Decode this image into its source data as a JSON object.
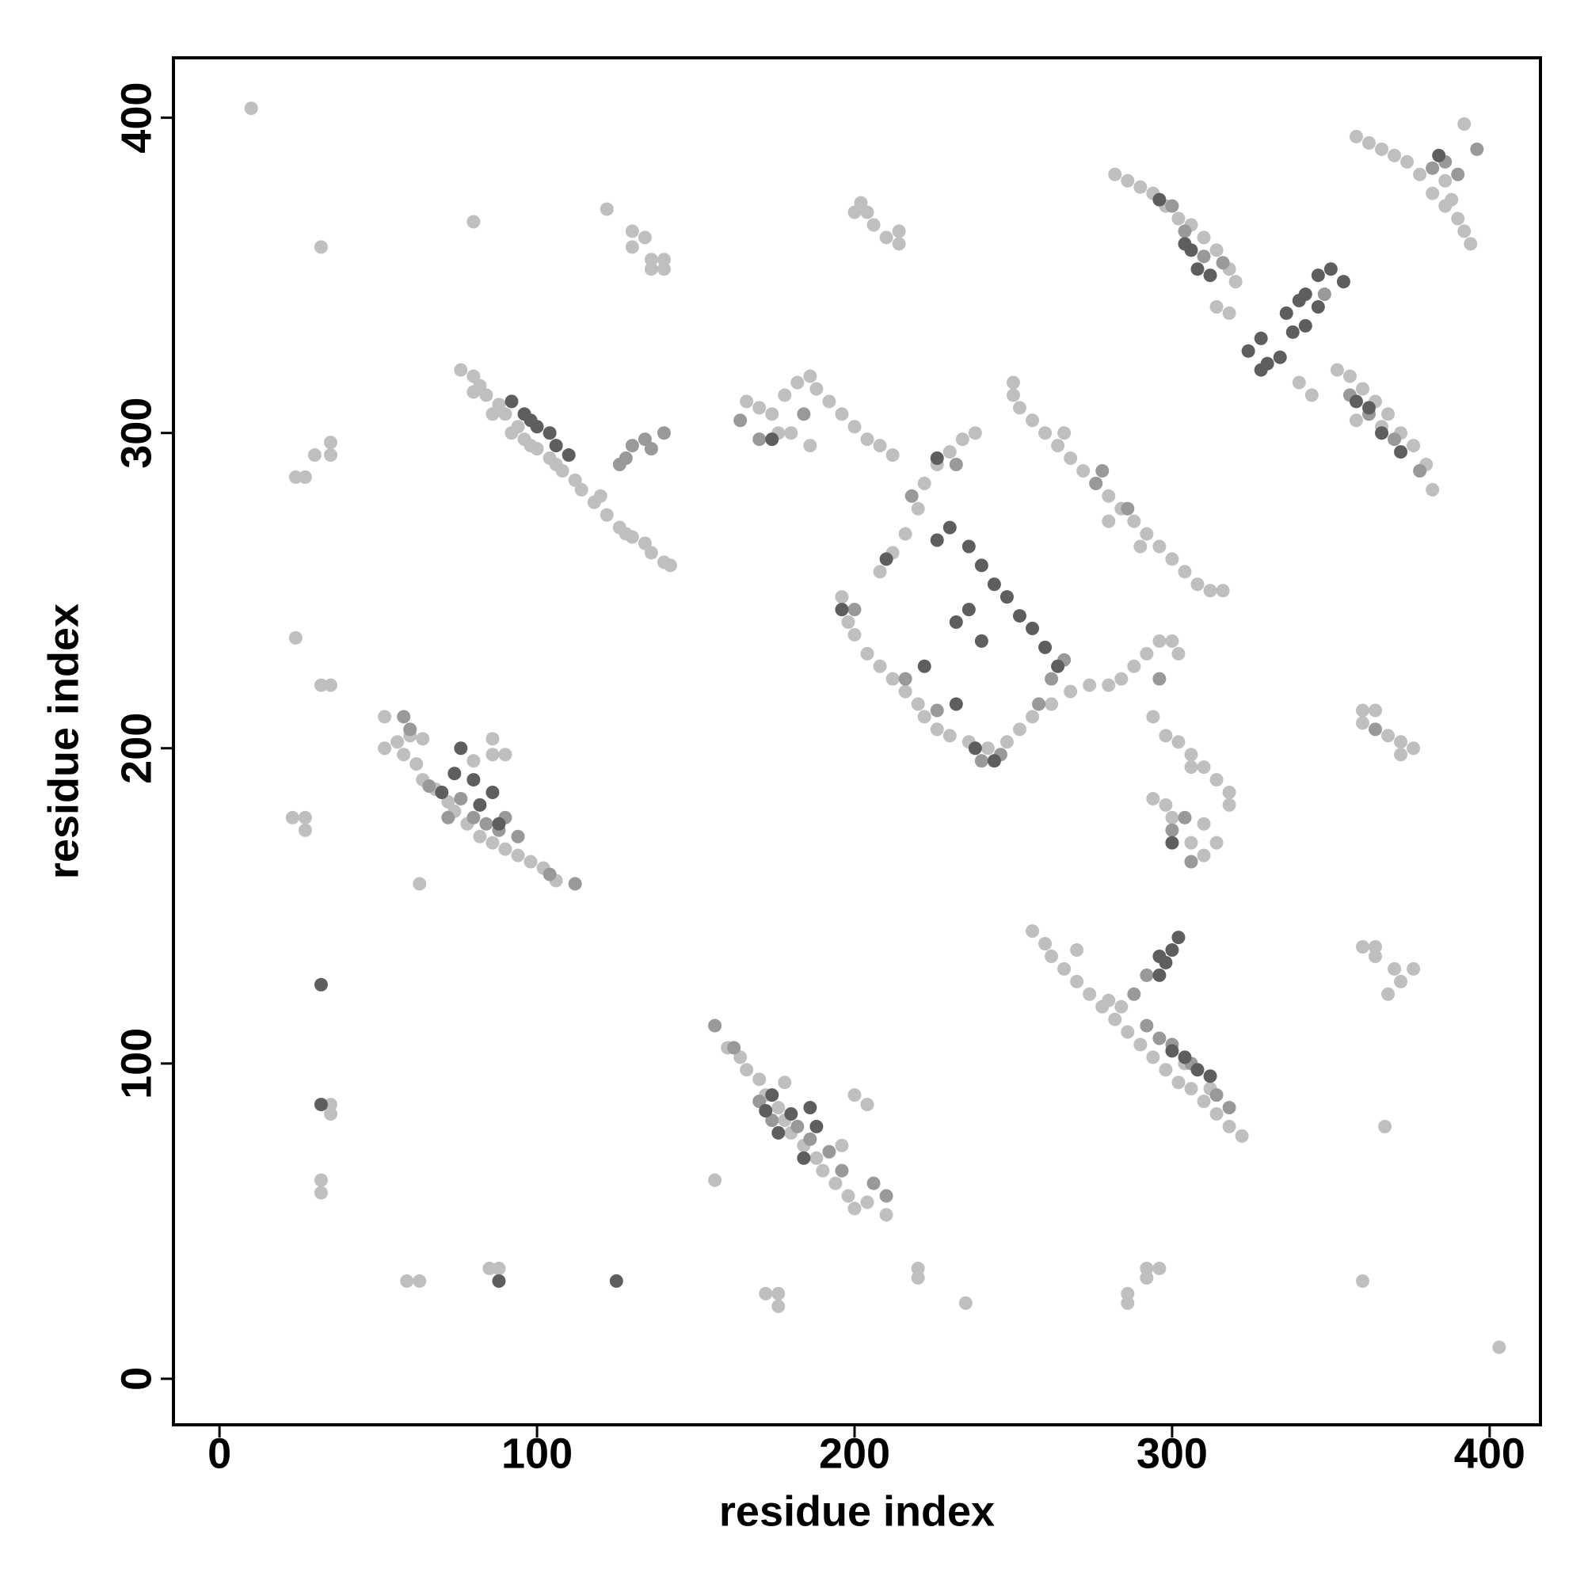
{
  "chart_data": {
    "type": "scatter",
    "xlabel": "residue index",
    "ylabel": "residue index",
    "xlim": [
      -14.5,
      416
    ],
    "ylim": [
      -14.6,
      419
    ],
    "xticks": [
      0,
      100,
      200,
      300,
      400
    ],
    "yticks": [
      0,
      100,
      200,
      300,
      400
    ],
    "series": [
      {
        "color": "#bfbfbf",
        "x": [
          10,
          32,
          80,
          122,
          130,
          134,
          130,
          136,
          140,
          136,
          140,
          202,
          204,
          206,
          210,
          214,
          214,
          200,
          76,
          80,
          82,
          84,
          88,
          90,
          94,
          96,
          100,
          104,
          108,
          112,
          80,
          86,
          92,
          98,
          106,
          114,
          118,
          122,
          126,
          130,
          134,
          136,
          140,
          142,
          120,
          128,
          24,
          27,
          30,
          35,
          35,
          24,
          32,
          35,
          23,
          27,
          27,
          63,
          35,
          35,
          32,
          32,
          59,
          63,
          85,
          88,
          52,
          52,
          56,
          58,
          62,
          64,
          68,
          72,
          74,
          78,
          82,
          86,
          90,
          94,
          98,
          102,
          106,
          60,
          64,
          80,
          86,
          86,
          90,
          160,
          164,
          166,
          170,
          172,
          176,
          178,
          180,
          184,
          188,
          190,
          194,
          198,
          200,
          204,
          210,
          178,
          200,
          204,
          196,
          156,
          172,
          176,
          176,
          220,
          220,
          235,
          286,
          286,
          292,
          296,
          292,
          360,
          403,
          367,
          368,
          360,
          364,
          364,
          370,
          372,
          376,
          256,
          260,
          262,
          266,
          270,
          274,
          278,
          282,
          286,
          290,
          294,
          298,
          302,
          306,
          310,
          314,
          318,
          322,
          270,
          280,
          284,
          304,
          312,
          294,
          298,
          302,
          306,
          310,
          314,
          318,
          318,
          294,
          298,
          300,
          306,
          310,
          314,
          310,
          306,
          360,
          364,
          360,
          368,
          372,
          376,
          372,
          196,
          198,
          200,
          204,
          208,
          212,
          216,
          220,
          222,
          226,
          230,
          236,
          242,
          248,
          252,
          256,
          262,
          268,
          274,
          280,
          284,
          288,
          292,
          296,
          300,
          302,
          208,
          212,
          216,
          220,
          222,
          226,
          230,
          234,
          238,
          166,
          170,
          174,
          178,
          182,
          186,
          188,
          192,
          196,
          200,
          204,
          208,
          212,
          176,
          180,
          186,
          250,
          250,
          252,
          256,
          260,
          264,
          268,
          272,
          276,
          280,
          284,
          288,
          292,
          296,
          300,
          304,
          308,
          312,
          316,
          280,
          266,
          290,
          282,
          286,
          290,
          294,
          298,
          302,
          306,
          310,
          314,
          318,
          320,
          314,
          318,
          348,
          340,
          344,
          352,
          356,
          360,
          364,
          368,
          372,
          376,
          380,
          382,
          358,
          366,
          358,
          362,
          366,
          370,
          374,
          378,
          382,
          386,
          390,
          392,
          394,
          386,
          392,
          388
        ],
        "y": [
          403,
          359,
          367,
          371,
          364,
          362,
          359,
          355,
          352,
          352,
          355,
          373,
          370,
          366,
          362,
          360,
          364,
          370,
          320,
          318,
          315,
          312,
          309,
          306,
          302,
          298,
          295,
          292,
          288,
          285,
          313,
          306,
          300,
          296,
          290,
          282,
          278,
          274,
          270,
          267,
          265,
          262,
          259,
          258,
          280,
          268,
          286,
          286,
          293,
          297,
          293,
          235,
          220,
          220,
          178,
          178,
          174,
          157,
          87,
          84,
          63,
          59,
          31,
          31,
          35,
          35,
          210,
          200,
          202,
          198,
          195,
          190,
          187,
          183,
          180,
          176,
          172,
          170,
          168,
          166,
          164,
          162,
          158,
          204,
          203,
          196,
          203,
          198,
          198,
          105,
          102,
          98,
          95,
          90,
          86,
          82,
          78,
          74,
          70,
          66,
          62,
          58,
          54,
          56,
          52,
          94,
          90,
          87,
          74,
          63,
          27,
          27,
          23,
          35,
          32,
          24,
          27,
          24,
          35,
          35,
          32,
          31,
          10,
          80,
          122,
          137,
          134,
          137,
          130,
          126,
          130,
          142,
          138,
          134,
          130,
          126,
          122,
          118,
          114,
          110,
          106,
          102,
          98,
          94,
          92,
          88,
          84,
          80,
          77,
          136,
          120,
          118,
          100,
          92,
          210,
          204,
          202,
          198,
          194,
          190,
          186,
          182,
          184,
          182,
          178,
          170,
          166,
          170,
          176,
          194,
          212,
          212,
          208,
          204,
          202,
          200,
          198,
          248,
          240,
          236,
          230,
          226,
          222,
          218,
          214,
          210,
          206,
          204,
          202,
          200,
          202,
          206,
          210,
          214,
          218,
          220,
          220,
          222,
          226,
          230,
          234,
          234,
          230,
          256,
          262,
          268,
          276,
          284,
          290,
          294,
          298,
          300,
          310,
          308,
          306,
          312,
          316,
          318,
          314,
          310,
          306,
          302,
          298,
          296,
          293,
          300,
          300,
          296,
          316,
          312,
          308,
          304,
          300,
          296,
          292,
          288,
          284,
          280,
          276,
          272,
          268,
          264,
          260,
          256,
          252,
          250,
          250,
          272,
          300,
          264,
          382,
          380,
          378,
          376,
          372,
          368,
          366,
          362,
          358,
          352,
          348,
          340,
          338,
          344,
          316,
          312,
          320,
          318,
          314,
          310,
          306,
          300,
          296,
          290,
          282,
          304,
          302,
          394,
          392,
          390,
          388,
          386,
          382,
          376,
          372,
          368,
          364,
          360,
          380,
          398,
          374
        ]
      },
      {
        "color": "#999999",
        "x": [
          128,
          130,
          134,
          136,
          140,
          126,
          58,
          60,
          66,
          72,
          76,
          80,
          84,
          88,
          90,
          94,
          104,
          112,
          156,
          162,
          170,
          174,
          182,
          186,
          192,
          196,
          206,
          210,
          292,
          296,
          300,
          306,
          314,
          318,
          288,
          292,
          300,
          304,
          306,
          364,
          200,
          216,
          226,
          240,
          246,
          258,
          262,
          266,
          296,
          232,
          218,
          164,
          170,
          184,
          276,
          286,
          278,
          300,
          304,
          310,
          316,
          348,
          356,
          362,
          370,
          378,
          382,
          386,
          390,
          396
        ],
        "y": [
          292,
          296,
          298,
          295,
          300,
          290,
          210,
          206,
          188,
          178,
          184,
          178,
          176,
          174,
          178,
          172,
          160,
          157,
          112,
          105,
          88,
          82,
          80,
          76,
          72,
          66,
          62,
          58,
          112,
          108,
          106,
          100,
          90,
          86,
          122,
          128,
          174,
          178,
          164,
          206,
          244,
          222,
          212,
          196,
          198,
          214,
          222,
          228,
          222,
          290,
          280,
          304,
          298,
          306,
          284,
          276,
          288,
          372,
          364,
          356,
          354,
          344,
          312,
          306,
          298,
          288,
          384,
          386,
          382,
          390
        ]
      },
      {
        "color": "#5e5e5e",
        "x": [
          92,
          96,
          100,
          104,
          106,
          110,
          98,
          32,
          32,
          88,
          125,
          70,
          74,
          80,
          82,
          86,
          88,
          76,
          172,
          176,
          180,
          184,
          188,
          174,
          186,
          296,
          298,
          300,
          302,
          300,
          304,
          308,
          312,
          296,
          300,
          196,
          210,
          222,
          232,
          238,
          244,
          226,
          230,
          236,
          240,
          244,
          248,
          252,
          256,
          260,
          264,
          236,
          240,
          232,
          226,
          174,
          296,
          304,
          308,
          312,
          306,
          324,
          328,
          330,
          334,
          336,
          340,
          342,
          346,
          350,
          354,
          338,
          342,
          346,
          328,
          358,
          362,
          366,
          372,
          384
        ],
        "y": [
          310,
          306,
          302,
          300,
          296,
          293,
          304,
          125,
          87,
          31,
          31,
          186,
          192,
          190,
          182,
          186,
          176,
          200,
          85,
          78,
          84,
          70,
          80,
          90,
          86,
          128,
          132,
          136,
          140,
          104,
          102,
          98,
          96,
          134,
          170,
          244,
          260,
          226,
          214,
          200,
          196,
          292,
          270,
          264,
          258,
          252,
          248,
          242,
          238,
          232,
          226,
          244,
          234,
          240,
          266,
          298,
          374,
          360,
          352,
          350,
          358,
          326,
          330,
          322,
          324,
          338,
          342,
          344,
          350,
          352,
          348,
          332,
          334,
          340,
          320,
          310,
          308,
          300,
          294,
          388
        ]
      }
    ]
  }
}
